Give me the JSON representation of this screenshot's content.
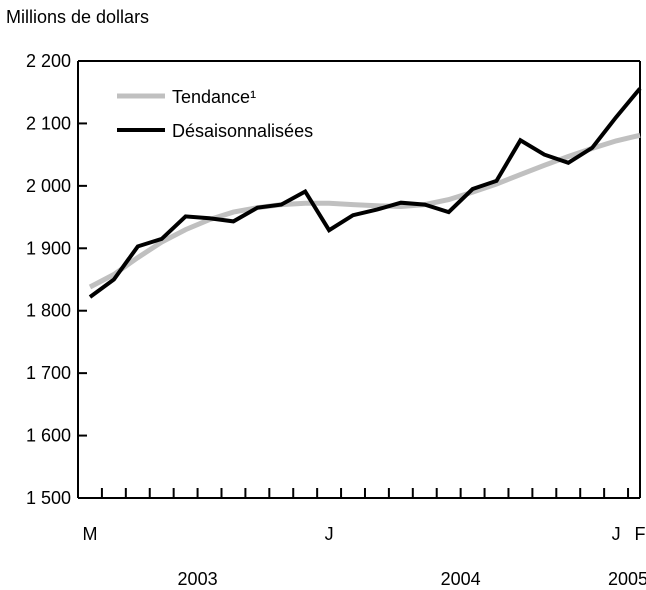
{
  "chart_data": {
    "type": "line",
    "ylabel": "Millions de dollars",
    "ylim": [
      1500,
      2200
    ],
    "y_ticks": [
      1500,
      1600,
      1700,
      1800,
      1900,
      2000,
      2100,
      2200
    ],
    "y_tick_labels": [
      "1 500",
      "1 600",
      "1 700",
      "1 800",
      "1 900",
      "2 000",
      "2 100",
      "2 200"
    ],
    "x": [
      "2003-03",
      "2003-04",
      "2003-05",
      "2003-06",
      "2003-07",
      "2003-08",
      "2003-09",
      "2003-10",
      "2003-11",
      "2003-12",
      "2004-01",
      "2004-02",
      "2004-03",
      "2004-04",
      "2004-05",
      "2004-06",
      "2004-07",
      "2004-08",
      "2004-09",
      "2004-10",
      "2004-11",
      "2004-12",
      "2005-01",
      "2005-02"
    ],
    "x_month_labels": [
      {
        "index": 0,
        "label": "M"
      },
      {
        "index": 10,
        "label": "J"
      },
      {
        "index": 22,
        "label": "J"
      },
      {
        "index": 23,
        "label": "F"
      }
    ],
    "x_year_labels": [
      {
        "center": 4.5,
        "label": "2003"
      },
      {
        "center": 15.5,
        "label": "2004"
      },
      {
        "center": 22.5,
        "label": "2005"
      }
    ],
    "series": [
      {
        "name": "Tendance¹",
        "color": "#c0c0c0",
        "values": [
          1838,
          1858,
          1885,
          1910,
          1930,
          1946,
          1958,
          1965,
          1970,
          1972,
          1972,
          1970,
          1968,
          1967,
          1970,
          1978,
          1990,
          2003,
          2018,
          2033,
          2047,
          2060,
          2072,
          2081
        ]
      },
      {
        "name": "Désaisonnalisées",
        "color": "#000000",
        "values": [
          1822,
          1850,
          1903,
          1915,
          1951,
          1948,
          1943,
          1965,
          1970,
          1991,
          1929,
          1953,
          1962,
          1973,
          1970,
          1958,
          1995,
          2008,
          2073,
          2050,
          2037,
          2061,
          2110,
          2156
        ]
      }
    ],
    "legend": {
      "position": "top-left"
    },
    "grid": false
  }
}
